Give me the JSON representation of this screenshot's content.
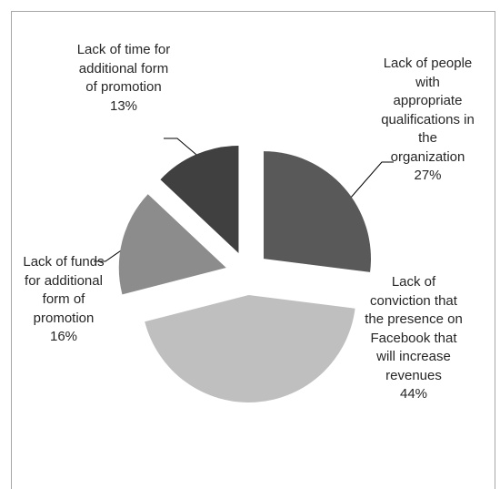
{
  "chart_data": {
    "type": "pie",
    "categories": [
      "Lack of people with appropriate qualifications in the organization",
      "Lack of conviction that the presence on Facebook that will increase revenues",
      "Lack of funds for additional form of promotion",
      "Lack of time for additional form of promotion"
    ],
    "values": [
      27,
      44,
      16,
      13
    ],
    "value_labels": [
      "27%",
      "44%",
      "16%",
      "13%"
    ],
    "colors": [
      "#595959",
      "#bfbfbf",
      "#8c8c8c",
      "#404040"
    ]
  }
}
